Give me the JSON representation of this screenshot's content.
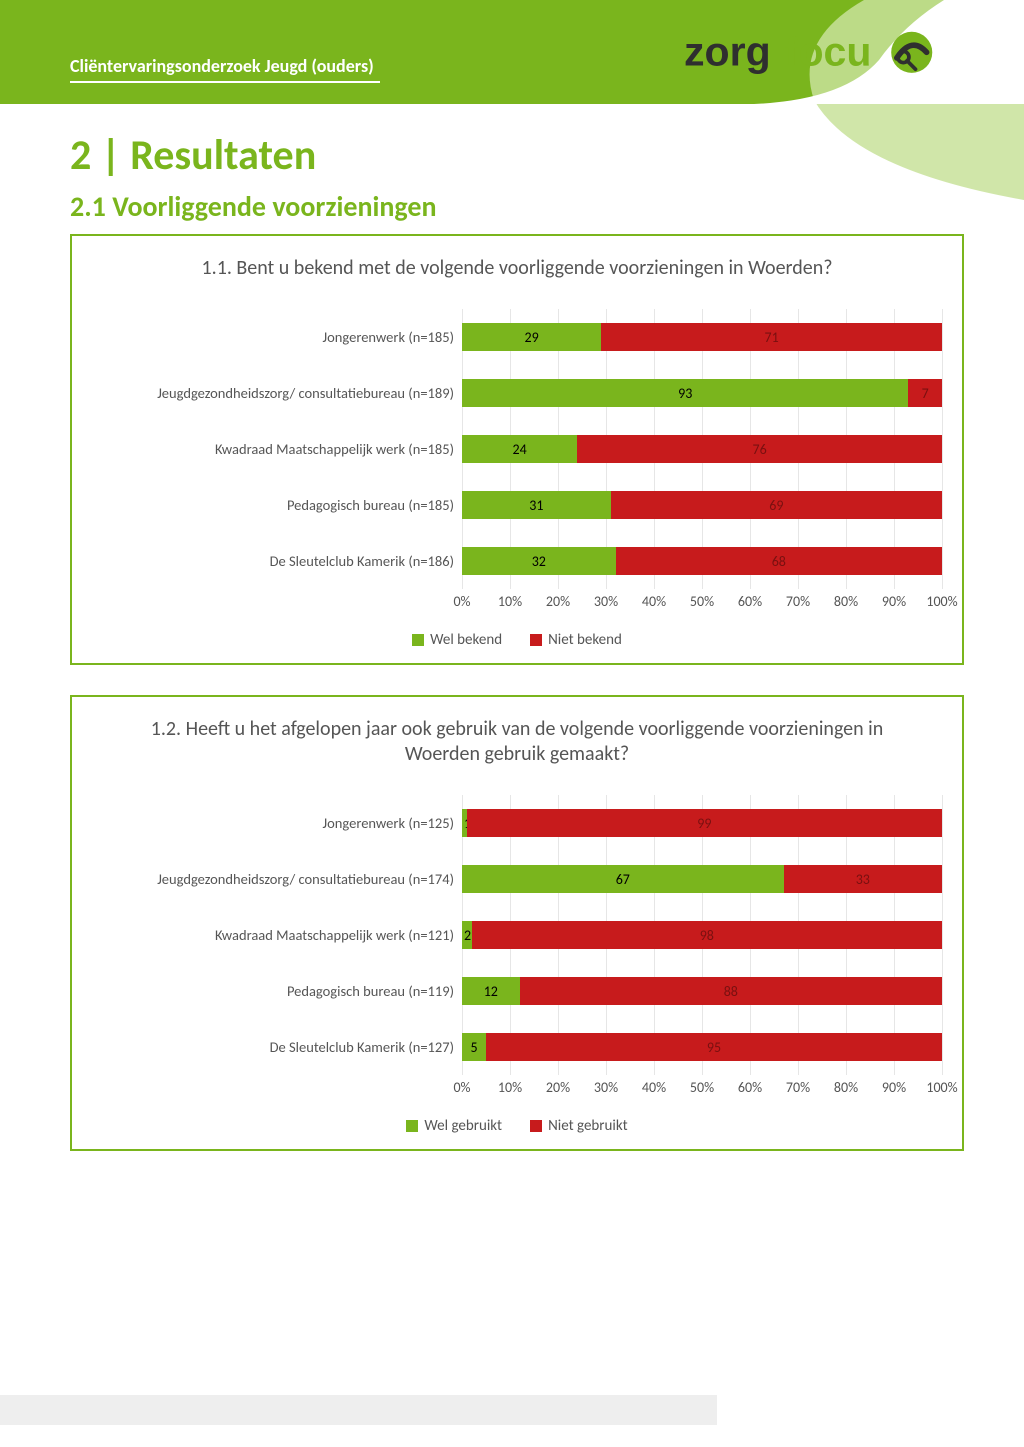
{
  "header": {
    "doc_title": "Cliëntervaringsonderzoek Jeugd (ouders)",
    "logo_text1": "zorg",
    "logo_text2": "focu",
    "brand_green": "#7ab51d",
    "brand_green_pale": "#c8e29a",
    "text_dark": "#2f2f2f"
  },
  "page": {
    "title": "2 | Resultaten",
    "section": "2.1  Voorliggende voorzieningen"
  },
  "colors": {
    "green": "#7ab51d",
    "red": "#c71b1c",
    "grid": "#e6e6e6",
    "axis_text": "#555555",
    "bar_label_dark": "#000000",
    "bar_label_light": "#7a1010"
  },
  "axis_ticks": [
    "0%",
    "10%",
    "20%",
    "30%",
    "40%",
    "50%",
    "60%",
    "70%",
    "80%",
    "90%",
    "100%"
  ],
  "chart1": {
    "title": "1.1. Bent u bekend met de volgende voorliggende voorzieningen in Woerden?",
    "legend": [
      "Wel bekend",
      "Niet bekend"
    ],
    "categories": [
      {
        "label": "Jongerenwerk (n=185)",
        "values": [
          29,
          71
        ]
      },
      {
        "label": "Jeugdgezondheidszorg/ consultatiebureau (n=189)",
        "values": [
          93,
          7
        ]
      },
      {
        "label": "Kwadraad Maatschappelijk werk (n=185)",
        "values": [
          24,
          76
        ]
      },
      {
        "label": "Pedagogisch bureau (n=185)",
        "values": [
          31,
          69
        ]
      },
      {
        "label": "De Sleutelclub Kamerik (n=186)",
        "values": [
          32,
          68
        ]
      }
    ],
    "series_colors": [
      "#7ab51d",
      "#c71b1c"
    ]
  },
  "chart2": {
    "title": "1.2. Heeft u het afgelopen jaar ook gebruik van de volgende voorliggende voorzieningen in Woerden gebruik gemaakt?",
    "legend": [
      "Wel gebruikt",
      "Niet gebruikt"
    ],
    "categories": [
      {
        "label": "Jongerenwerk (n=125)",
        "values": [
          1,
          99
        ]
      },
      {
        "label": "Jeugdgezondheidszorg/ consultatiebureau (n=174)",
        "values": [
          67,
          33
        ]
      },
      {
        "label": "Kwadraad Maatschappelijk werk (n=121)",
        "values": [
          2,
          98
        ]
      },
      {
        "label": "Pedagogisch bureau (n=119)",
        "values": [
          12,
          88
        ]
      },
      {
        "label": "De Sleutelclub Kamerik (n=127)",
        "values": [
          5,
          95
        ]
      }
    ],
    "series_colors": [
      "#7ab51d",
      "#c71b1c"
    ]
  }
}
